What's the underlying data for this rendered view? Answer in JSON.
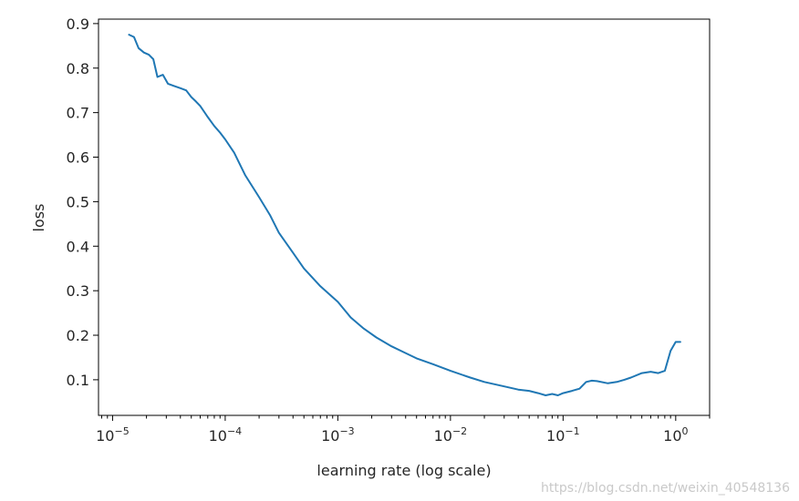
{
  "chart_data": {
    "type": "line",
    "xlabel": "learning rate (log scale)",
    "ylabel": "loss",
    "x_scale": "log",
    "xlim": [
      7.5e-06,
      2.0
    ],
    "ylim": [
      0.02,
      0.91
    ],
    "grid": false,
    "legend": "none",
    "x_ticks": [
      {
        "value": 1e-05,
        "base": "10",
        "exp": "−5"
      },
      {
        "value": 0.0001,
        "base": "10",
        "exp": "−4"
      },
      {
        "value": 0.001,
        "base": "10",
        "exp": "−3"
      },
      {
        "value": 0.01,
        "base": "10",
        "exp": "−2"
      },
      {
        "value": 0.1,
        "base": "10",
        "exp": "−1"
      },
      {
        "value": 1,
        "base": "10",
        "exp": "0"
      }
    ],
    "y_ticks": [
      {
        "value": 0.1,
        "label": "0.1"
      },
      {
        "value": 0.2,
        "label": "0.2"
      },
      {
        "value": 0.3,
        "label": "0.3"
      },
      {
        "value": 0.4,
        "label": "0.4"
      },
      {
        "value": 0.5,
        "label": "0.5"
      },
      {
        "value": 0.6,
        "label": "0.6"
      },
      {
        "value": 0.7,
        "label": "0.7"
      },
      {
        "value": 0.8,
        "label": "0.8"
      },
      {
        "value": 0.9,
        "label": "0.9"
      }
    ],
    "series": [
      {
        "color": "#1f77b4",
        "x": [
          1.4e-05,
          1.55e-05,
          1.7e-05,
          1.9e-05,
          2.1e-05,
          2.3e-05,
          2.5e-05,
          2.8e-05,
          3.1e-05,
          3.5e-05,
          4e-05,
          4.5e-05,
          5e-05,
          5.5e-05,
          6e-05,
          7e-05,
          8e-05,
          9e-05,
          0.0001,
          0.00012,
          0.00015,
          0.0002,
          0.00025,
          0.0003,
          0.0004,
          0.0005,
          0.0007,
          0.001,
          0.0013,
          0.0017,
          0.0022,
          0.003,
          0.004,
          0.005,
          0.007,
          0.01,
          0.015,
          0.02,
          0.03,
          0.04,
          0.05,
          0.06,
          0.07,
          0.08,
          0.09,
          0.1,
          0.12,
          0.14,
          0.16,
          0.18,
          0.2,
          0.25,
          0.3,
          0.35,
          0.4,
          0.5,
          0.6,
          0.7,
          0.8,
          0.9,
          1.0,
          1.1
        ],
        "y": [
          0.875,
          0.87,
          0.845,
          0.835,
          0.83,
          0.82,
          0.78,
          0.785,
          0.765,
          0.76,
          0.755,
          0.75,
          0.735,
          0.725,
          0.715,
          0.69,
          0.67,
          0.655,
          0.64,
          0.61,
          0.56,
          0.51,
          0.47,
          0.43,
          0.385,
          0.35,
          0.31,
          0.275,
          0.24,
          0.215,
          0.195,
          0.175,
          0.16,
          0.148,
          0.135,
          0.12,
          0.105,
          0.095,
          0.085,
          0.078,
          0.075,
          0.07,
          0.065,
          0.068,
          0.065,
          0.07,
          0.075,
          0.08,
          0.095,
          0.098,
          0.097,
          0.092,
          0.095,
          0.1,
          0.105,
          0.115,
          0.118,
          0.115,
          0.12,
          0.165,
          0.185,
          0.185
        ]
      }
    ]
  },
  "watermark": "https://blog.csdn.net/weixin_40548136"
}
